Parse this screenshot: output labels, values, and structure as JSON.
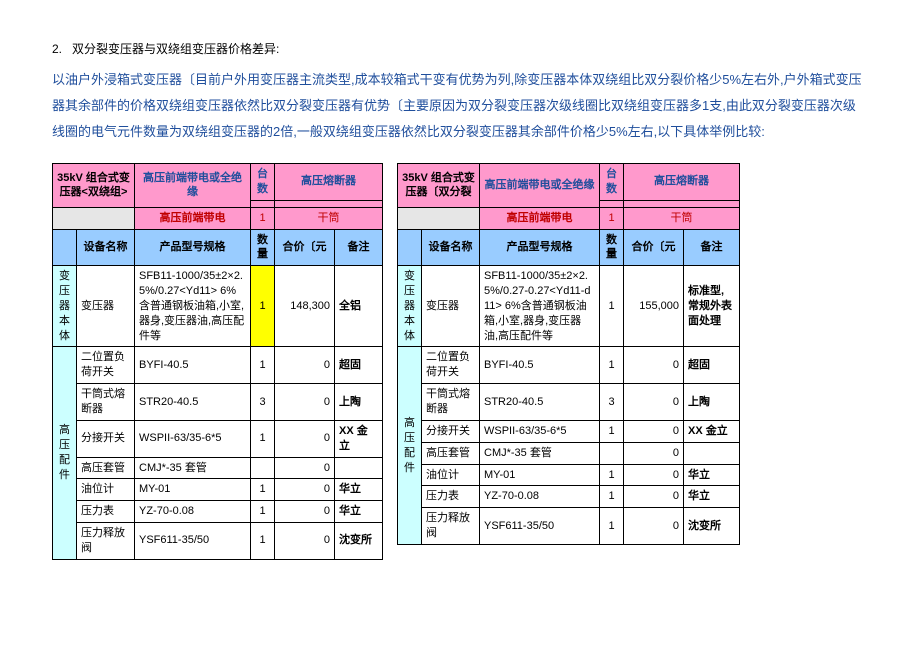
{
  "section": {
    "number": "2.",
    "title": "双分裂变压器与双绕组变压器价格差异:",
    "intro": "以油户外浸箱式变压器〔目前户外用变压器主流类型,成本较箱式干变有优势为列,除变压器本体双绕组比双分裂价格少5%左右外,户外箱式变压器其余部件的价格双绕组变压器依然比双分裂变压器有优势〔主要原因为双分裂变压器次级线圈比双绕组变压器多1支,由此双分裂变压器次级线圈的电气元件数量为双绕组变压器的2倍,一般双绕组变压器依然比双分裂变压器其余部件价格少5%左右,以下具体举例比较:"
  },
  "left": {
    "title_a": "35kV 组合式变压器<双绕组>",
    "title_b": "高压前端带电或全绝缘",
    "tai_label": "台数",
    "fuse_label": "高压熔断器",
    "sub_a": "高压前端带电",
    "sub_n": "1",
    "sub_fuse": "干筒",
    "col_dev": "设备名称",
    "col_model": "产品型号规格",
    "col_qty": "数量",
    "col_price": "合价〔元",
    "col_note": "备注",
    "body_group": "变压器本体",
    "row1_dev": "变压器",
    "row1_model": "SFB11-1000/35±2×2.5%/0.27<Yd11> 6%含普通钢板油箱,小室,器身,变压器油,高压配件等",
    "row1_qty": "1",
    "row1_price": "148,300",
    "row1_note": "全铝",
    "hv_group": "高压配件",
    "r2_dev": "二位置负荷开关",
    "r2_model": "BYFI-40.5",
    "r2_qty": "1",
    "r2_price": "0",
    "r2_note": "超固",
    "r3_dev": "干筒式熔断器",
    "r3_model": "STR20-40.5",
    "r3_qty": "3",
    "r3_price": "0",
    "r3_note": "上陶",
    "r4_dev": "分接开关",
    "r4_model": "WSPII-63/35-6*5",
    "r4_qty": "1",
    "r4_price": "0",
    "r4_note": "XX 金立",
    "r5_dev": "高压套管",
    "r5_model": "CMJ*-35 套管",
    "r5_qty": "",
    "r5_price": "0",
    "r5_note": "",
    "r6_dev": "油位计",
    "r6_model": "MY-01",
    "r6_qty": "1",
    "r6_price": "0",
    "r6_note": "华立",
    "r7_dev": "压力表",
    "r7_model": "YZ-70-0.08",
    "r7_qty": "1",
    "r7_price": "0",
    "r7_note": "华立",
    "r8_dev": "压力释放阀",
    "r8_model": "YSF611-35/50",
    "r8_qty": "1",
    "r8_price": "0",
    "r8_note": "沈变所"
  },
  "right": {
    "title_a": "35kV 组合式变压器〔双分裂",
    "title_b": "高压前端带电或全绝缘",
    "tai_label": "台数",
    "fuse_label": "高压熔断器",
    "sub_a": "高压前端带电",
    "sub_n": "1",
    "sub_fuse": "干筒",
    "col_dev": "设备名称",
    "col_model": "产品型号规格",
    "col_qty": "数量",
    "col_price": "合价〔元",
    "col_note": "备注",
    "body_group": "变压器本体",
    "row1_dev": "变压器",
    "row1_model": "SFB11-1000/35±2×2.5%/0.27-0.27<Yd11-d11> 6%含普通钢板油箱,小室,器身,变压器油,高压配件等",
    "row1_qty": "1",
    "row1_price": "155,000",
    "row1_note": "标准型,常规外表面处理",
    "hv_group": "高压配件",
    "r2_dev": "二位置负荷开关",
    "r2_model": "BYFI-40.5",
    "r2_qty": "1",
    "r2_price": "0",
    "r2_note": "超固",
    "r3_dev": "干筒式熔断器",
    "r3_model": "STR20-40.5",
    "r3_qty": "3",
    "r3_price": "0",
    "r3_note": "上陶",
    "r4_dev": "分接开关",
    "r4_model": "WSPII-63/35-6*5",
    "r4_qty": "1",
    "r4_price": "0",
    "r4_note": "XX 金立",
    "r5_dev": "高压套管",
    "r5_model": "CMJ*-35 套管",
    "r5_qty": "",
    "r5_price": "0",
    "r5_note": "",
    "r6_dev": "油位计",
    "r6_model": "MY-01",
    "r6_qty": "1",
    "r6_price": "0",
    "r6_note": "华立",
    "r7_dev": "压力表",
    "r7_model": "YZ-70-0.08",
    "r7_qty": "1",
    "r7_price": "0",
    "r7_note": "华立",
    "r8_dev": "压力释放阀",
    "r8_model": "YSF611-35/50",
    "r8_qty": "1",
    "r8_price": "0",
    "r8_note": "沈变所"
  }
}
